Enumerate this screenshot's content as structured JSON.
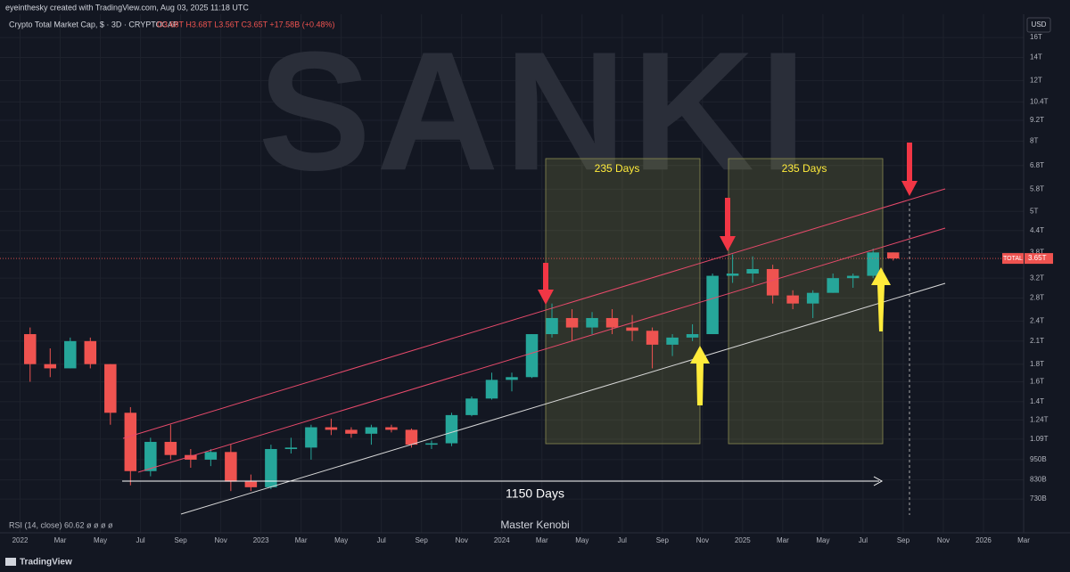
{
  "chart_data": {
    "type": "candlestick",
    "header": "eyeinthesky created with TradingView.com, Aug 03, 2025 11:18 UTC",
    "title": "Crypto Total Market Cap, $ · 3D · CRYPTOCAP",
    "ohlc_text": "O3.68T H3.68T L3.56T C3.65T +17.58B (+0.48%)",
    "currency": "USD",
    "symbol": "TOTAL",
    "last_price": {
      "value": 3.65,
      "label": "3.65T"
    },
    "indicator": "RSI (14, close) 60.62 ø ø ø ø",
    "watermark": "SANKI",
    "author": "Master Kenobi",
    "brand": "TradingView",
    "annotations": [
      "235 Days",
      "235 Days",
      "1150 Days"
    ],
    "log_scale": true,
    "grid": true,
    "up_color": "#26a69a",
    "down_color": "#ef5350",
    "x": [
      "2022-01",
      "2022-02",
      "2022-03",
      "2022-04",
      "2022-05",
      "2022-06",
      "2022-07",
      "2022-08",
      "2022-09",
      "2022-10",
      "2022-11",
      "2022-12",
      "2023-01",
      "2023-02",
      "2023-03",
      "2023-04",
      "2023-05",
      "2023-06",
      "2023-07",
      "2023-08",
      "2023-09",
      "2023-10",
      "2023-11",
      "2023-12",
      "2024-01",
      "2024-02",
      "2024-03",
      "2024-04",
      "2024-05",
      "2024-06",
      "2024-07",
      "2024-08",
      "2024-09",
      "2024-10",
      "2024-11",
      "2024-12",
      "2025-01",
      "2025-02",
      "2025-03",
      "2025-04",
      "2025-05",
      "2025-06",
      "2025-07",
      "2025-08"
    ],
    "open": [
      2.2,
      1.8,
      1.75,
      2.1,
      1.8,
      1.3,
      0.88,
      1.07,
      0.98,
      0.95,
      1.0,
      0.82,
      0.79,
      1.02,
      1.03,
      1.18,
      1.16,
      1.13,
      1.18,
      1.16,
      1.05,
      1.06,
      1.28,
      1.43,
      1.62,
      1.65,
      2.2,
      2.45,
      2.3,
      2.45,
      2.3,
      2.25,
      2.05,
      2.15,
      2.2,
      3.25,
      3.3,
      3.4,
      2.85,
      2.7,
      2.9,
      3.2,
      3.25,
      3.8
    ],
    "high": [
      2.3,
      2.0,
      2.15,
      2.15,
      1.8,
      1.35,
      1.1,
      1.2,
      1.02,
      1.02,
      1.05,
      0.86,
      1.05,
      1.1,
      1.2,
      1.25,
      1.18,
      1.2,
      1.2,
      1.17,
      1.08,
      1.3,
      1.45,
      1.7,
      1.7,
      2.2,
      2.7,
      2.6,
      2.55,
      2.6,
      2.5,
      2.3,
      2.2,
      2.35,
      3.3,
      3.75,
      3.7,
      3.5,
      2.95,
      2.95,
      3.3,
      3.3,
      3.9,
      3.8
    ],
    "low": [
      1.6,
      1.65,
      1.75,
      1.75,
      1.2,
      0.8,
      0.85,
      0.95,
      0.9,
      0.91,
      0.77,
      0.77,
      0.78,
      0.99,
      0.95,
      1.12,
      1.1,
      1.05,
      1.14,
      1.03,
      1.02,
      1.04,
      1.27,
      1.42,
      1.5,
      1.64,
      2.15,
      2.1,
      2.2,
      2.2,
      2.1,
      1.75,
      1.9,
      2.1,
      2.2,
      3.1,
      3.1,
      2.7,
      2.6,
      2.45,
      2.9,
      3.0,
      3.2,
      3.6
    ],
    "close": [
      1.8,
      1.75,
      2.1,
      1.8,
      1.3,
      0.88,
      1.07,
      0.98,
      0.95,
      1.0,
      0.82,
      0.79,
      1.02,
      1.03,
      1.18,
      1.16,
      1.13,
      1.18,
      1.16,
      1.05,
      1.06,
      1.28,
      1.43,
      1.62,
      1.65,
      2.2,
      2.45,
      2.3,
      2.45,
      2.3,
      2.25,
      2.05,
      2.15,
      2.2,
      3.25,
      3.3,
      3.4,
      2.85,
      2.7,
      2.9,
      3.2,
      3.25,
      3.8,
      3.65
    ],
    "xlim": [
      "2021-12",
      "2026-03"
    ],
    "ylim": [
      0.668,
      17.2
    ],
    "xticks": [
      {
        "value": "2022-01",
        "label": "2022"
      },
      {
        "value": "2022-03",
        "label": "Mar"
      },
      {
        "value": "2022-05",
        "label": "May"
      },
      {
        "value": "2022-07",
        "label": "Jul"
      },
      {
        "value": "2022-09",
        "label": "Sep"
      },
      {
        "value": "2022-11",
        "label": "Nov"
      },
      {
        "value": "2023-01",
        "label": "2023"
      },
      {
        "value": "2023-03",
        "label": "Mar"
      },
      {
        "value": "2023-05",
        "label": "May"
      },
      {
        "value": "2023-07",
        "label": "Jul"
      },
      {
        "value": "2023-09",
        "label": "Sep"
      },
      {
        "value": "2023-11",
        "label": "Nov"
      },
      {
        "value": "2024-01",
        "label": "2024"
      },
      {
        "value": "2024-03",
        "label": "Mar"
      },
      {
        "value": "2024-05",
        "label": "May"
      },
      {
        "value": "2024-07",
        "label": "Jul"
      },
      {
        "value": "2024-09",
        "label": "Sep"
      },
      {
        "value": "2024-11",
        "label": "Nov"
      },
      {
        "value": "2025-01",
        "label": "2025"
      },
      {
        "value": "2025-03",
        "label": "Mar"
      },
      {
        "value": "2025-05",
        "label": "May"
      },
      {
        "value": "2025-07",
        "label": "Jul"
      },
      {
        "value": "2025-09",
        "label": "Sep"
      },
      {
        "value": "2025-11",
        "label": "Nov"
      },
      {
        "value": "2026-01",
        "label": "2026"
      },
      {
        "value": "2026-03",
        "label": "Mar"
      }
    ],
    "yticks": [
      {
        "value": 16,
        "label": "16T"
      },
      {
        "value": 14,
        "label": "14T"
      },
      {
        "value": 12,
        "label": "12T"
      },
      {
        "value": 10.4,
        "label": "10.4T"
      },
      {
        "value": 9.2,
        "label": "9.2T"
      },
      {
        "value": 8,
        "label": "8T"
      },
      {
        "value": 6.8,
        "label": "6.8T"
      },
      {
        "value": 5.8,
        "label": "5.8T"
      },
      {
        "value": 5,
        "label": "5T"
      },
      {
        "value": 4.4,
        "label": "4.4T"
      },
      {
        "value": 3.8,
        "label": "3.8T"
      },
      {
        "value": 3.2,
        "label": "3.2T"
      },
      {
        "value": 2.8,
        "label": "2.8T"
      },
      {
        "value": 2.4,
        "label": "2.4T"
      },
      {
        "value": 2.1,
        "label": "2.1T"
      },
      {
        "value": 1.8,
        "label": "1.8T"
      },
      {
        "value": 1.6,
        "label": "1.6T"
      },
      {
        "value": 1.4,
        "label": "1.4T"
      },
      {
        "value": 1.24,
        "label": "1.24T"
      },
      {
        "value": 1.09,
        "label": "1.09T"
      },
      {
        "value": 0.95,
        "label": "950B"
      },
      {
        "value": 0.83,
        "label": "830B"
      },
      {
        "value": 0.73,
        "label": "730B"
      }
    ]
  }
}
